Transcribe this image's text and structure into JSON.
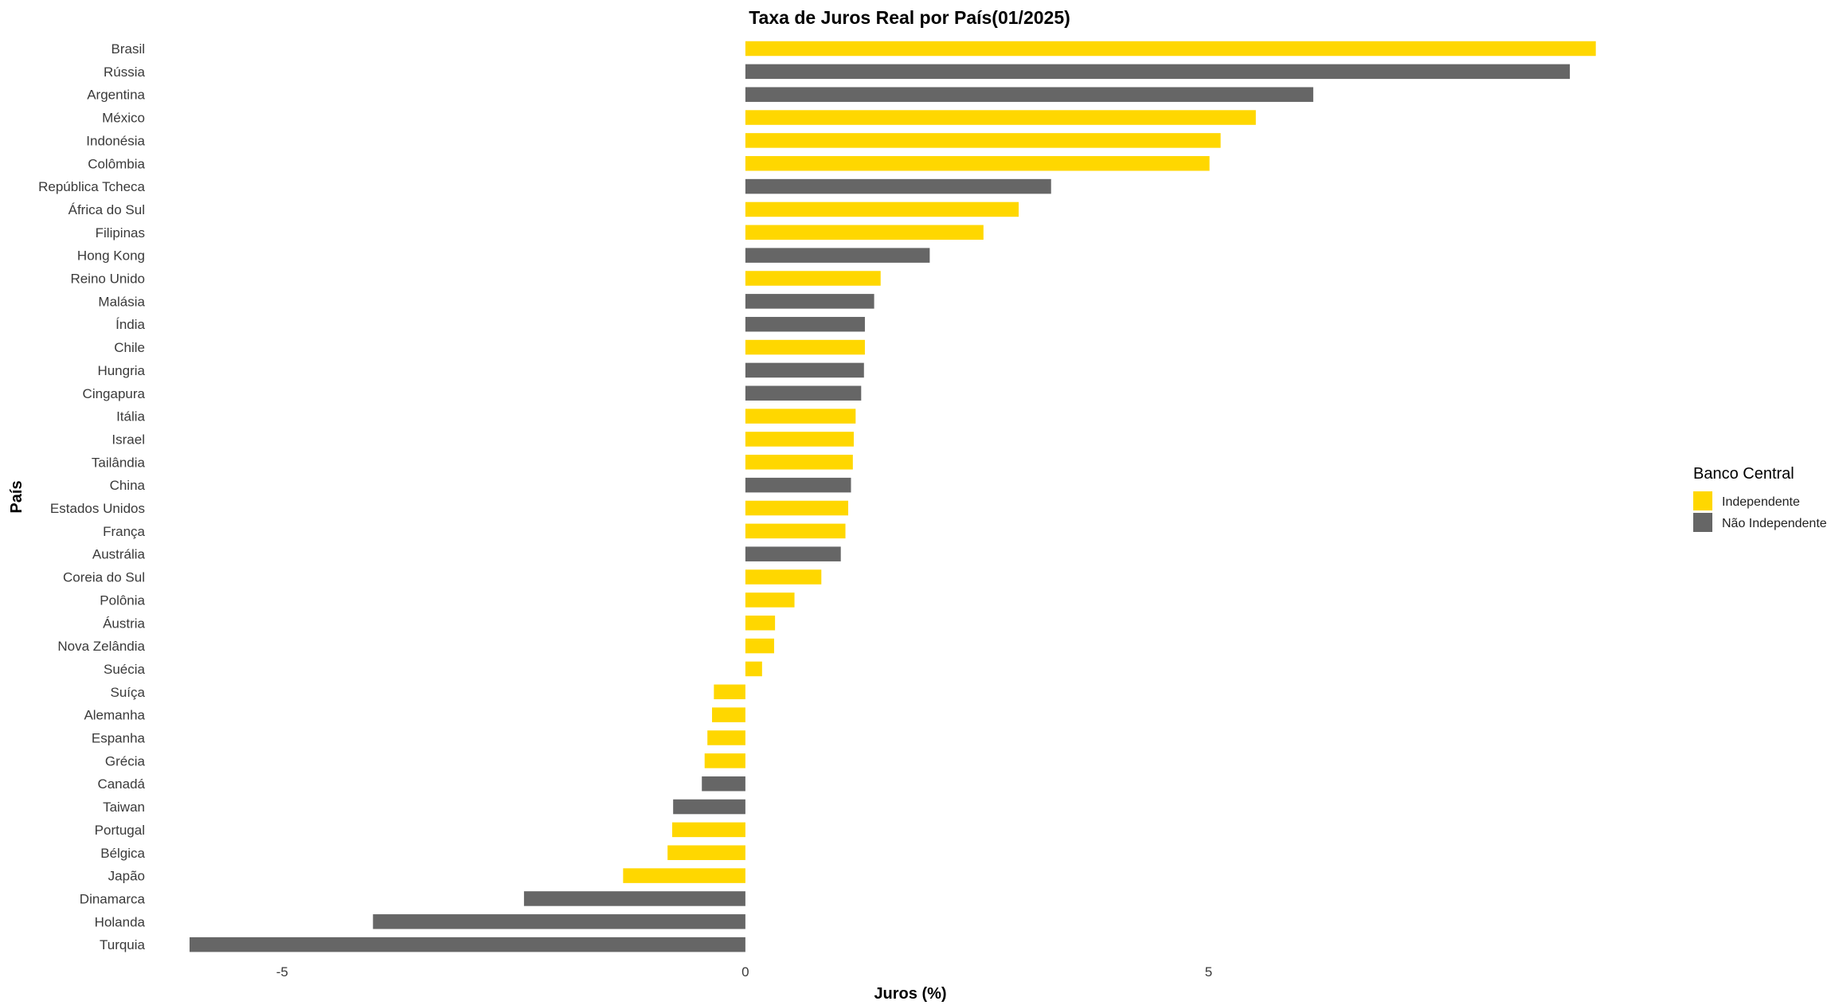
{
  "chart_data": {
    "type": "bar",
    "orientation": "horizontal",
    "title": "Taxa de Juros Real por País(01/2025)",
    "xlabel": "Juros (%)",
    "ylabel": "País",
    "xlim": [
      -6.0,
      9.2
    ],
    "xticks": [
      -5,
      0,
      5
    ],
    "grid": false,
    "legend": {
      "title": "Banco Central",
      "placement": "right",
      "entries": [
        {
          "key": "ind",
          "label": "Independente",
          "color": "#FFD700"
        },
        {
          "key": "nind",
          "label": "Não Independente",
          "color": "#666666"
        }
      ]
    },
    "bars": [
      {
        "country": "Brasil",
        "value": 9.18,
        "group": "ind"
      },
      {
        "country": "Rússia",
        "value": 8.9,
        "group": "nind"
      },
      {
        "country": "Argentina",
        "value": 6.13,
        "group": "nind"
      },
      {
        "country": "México",
        "value": 5.51,
        "group": "ind"
      },
      {
        "country": "Indonésia",
        "value": 5.13,
        "group": "ind"
      },
      {
        "country": "Colômbia",
        "value": 5.01,
        "group": "ind"
      },
      {
        "country": "República Tcheca",
        "value": 3.3,
        "group": "nind"
      },
      {
        "country": "África do Sul",
        "value": 2.95,
        "group": "ind"
      },
      {
        "country": "Filipinas",
        "value": 2.57,
        "group": "ind"
      },
      {
        "country": "Hong Kong",
        "value": 1.99,
        "group": "nind"
      },
      {
        "country": "Reino Unido",
        "value": 1.46,
        "group": "ind"
      },
      {
        "country": "Malásia",
        "value": 1.39,
        "group": "nind"
      },
      {
        "country": "Índia",
        "value": 1.29,
        "group": "nind"
      },
      {
        "country": "Chile",
        "value": 1.29,
        "group": "ind"
      },
      {
        "country": "Hungria",
        "value": 1.28,
        "group": "nind"
      },
      {
        "country": "Cingapura",
        "value": 1.25,
        "group": "nind"
      },
      {
        "country": "Itália",
        "value": 1.19,
        "group": "ind"
      },
      {
        "country": "Israel",
        "value": 1.17,
        "group": "ind"
      },
      {
        "country": "Tailândia",
        "value": 1.16,
        "group": "ind"
      },
      {
        "country": "China",
        "value": 1.14,
        "group": "nind"
      },
      {
        "country": "Estados Unidos",
        "value": 1.11,
        "group": "ind"
      },
      {
        "country": "França",
        "value": 1.08,
        "group": "ind"
      },
      {
        "country": "Austrália",
        "value": 1.03,
        "group": "nind"
      },
      {
        "country": "Coreia do Sul",
        "value": 0.82,
        "group": "ind"
      },
      {
        "country": "Polônia",
        "value": 0.53,
        "group": "ind"
      },
      {
        "country": "Áustria",
        "value": 0.32,
        "group": "ind"
      },
      {
        "country": "Nova Zelândia",
        "value": 0.31,
        "group": "ind"
      },
      {
        "country": "Suécia",
        "value": 0.18,
        "group": "ind"
      },
      {
        "country": "Suíça",
        "value": -0.34,
        "group": "ind"
      },
      {
        "country": "Alemanha",
        "value": -0.36,
        "group": "ind"
      },
      {
        "country": "Espanha",
        "value": -0.41,
        "group": "ind"
      },
      {
        "country": "Grécia",
        "value": -0.44,
        "group": "ind"
      },
      {
        "country": "Canadá",
        "value": -0.47,
        "group": "nind"
      },
      {
        "country": "Taiwan",
        "value": -0.78,
        "group": "nind"
      },
      {
        "country": "Portugal",
        "value": -0.79,
        "group": "ind"
      },
      {
        "country": "Bélgica",
        "value": -0.84,
        "group": "ind"
      },
      {
        "country": "Japão",
        "value": -1.32,
        "group": "ind"
      },
      {
        "country": "Dinamarca",
        "value": -2.39,
        "group": "nind"
      },
      {
        "country": "Holanda",
        "value": -4.02,
        "group": "nind"
      },
      {
        "country": "Turquia",
        "value": -6.0,
        "group": "nind"
      }
    ]
  }
}
